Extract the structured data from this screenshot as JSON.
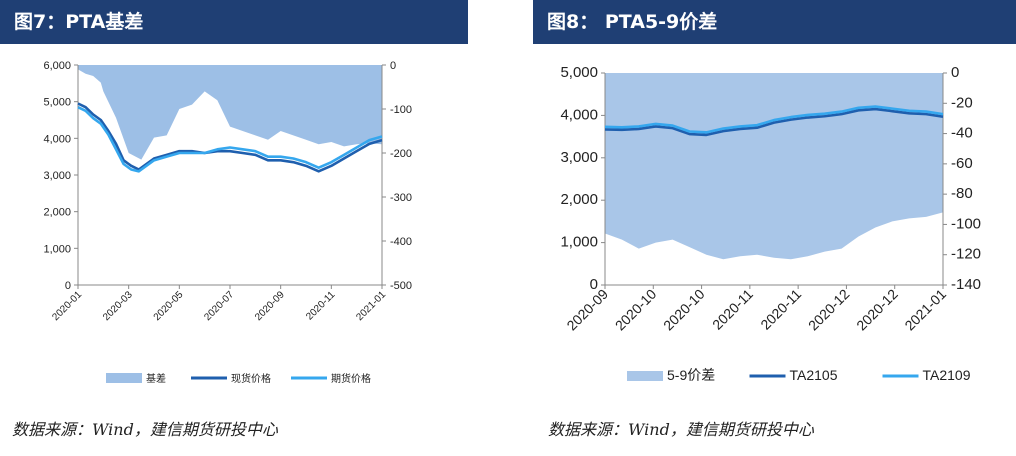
{
  "chart_data": [
    {
      "type": "line",
      "title": "图7：PTA基差",
      "xlabel": "",
      "ylabel": "",
      "x_ticks": [
        "2020-01",
        "2020-03",
        "2020-05",
        "2020-07",
        "2020-09",
        "2020-11",
        "2021-01"
      ],
      "y_left_ticks": [
        "6,000",
        "5,000",
        "4,000",
        "3,000",
        "2,000",
        "1,000",
        "0"
      ],
      "y_right_ticks": [
        "0",
        "-100",
        "-200",
        "-300",
        "-400",
        "-500"
      ],
      "ylim_left": [
        0,
        6000
      ],
      "ylim_right": [
        -500,
        0
      ],
      "legend_position": "bottom",
      "series": [
        {
          "name": "基差",
          "type": "area",
          "axis": "right",
          "color": "#9dbfe6",
          "x": [
            0,
            0.3,
            0.6,
            0.9,
            1.0,
            1.5,
            2.0,
            2.5,
            3.0,
            3.5,
            4.0,
            4.5,
            5.0,
            5.5,
            6.0,
            6.5,
            7.0,
            7.5,
            8.0,
            8.5,
            9.0,
            9.5,
            10.0,
            10.5,
            11.0,
            11.5,
            12.0
          ],
          "values": [
            -10,
            -20,
            -25,
            -40,
            -60,
            -120,
            -200,
            -215,
            -165,
            -160,
            -100,
            -90,
            -60,
            -80,
            -140,
            -150,
            -160,
            -170,
            -150,
            -160,
            -170,
            -180,
            -175,
            -185,
            -180,
            -178,
            -180
          ]
        },
        {
          "name": "现货价格",
          "type": "line",
          "axis": "left",
          "color": "#1f5fae",
          "x": [
            0,
            0.3,
            0.6,
            0.9,
            1.2,
            1.5,
            1.8,
            2.1,
            2.4,
            2.7,
            3.0,
            3.5,
            4.0,
            4.5,
            5.0,
            5.5,
            6.0,
            6.5,
            7.0,
            7.5,
            8.0,
            8.5,
            9.0,
            9.5,
            10.0,
            10.5,
            11.0,
            11.5,
            12.0
          ],
          "values": [
            4950,
            4850,
            4650,
            4500,
            4200,
            3850,
            3400,
            3250,
            3150,
            3300,
            3450,
            3550,
            3650,
            3650,
            3600,
            3650,
            3650,
            3600,
            3550,
            3400,
            3400,
            3350,
            3250,
            3100,
            3250,
            3450,
            3650,
            3850,
            3950
          ]
        },
        {
          "name": "期货价格",
          "type": "line",
          "axis": "left",
          "color": "#35a7ee",
          "x": [
            0,
            0.3,
            0.6,
            0.9,
            1.2,
            1.5,
            1.8,
            2.1,
            2.4,
            2.7,
            3.0,
            3.5,
            4.0,
            4.5,
            5.0,
            5.5,
            6.0,
            6.5,
            7.0,
            7.5,
            8.0,
            8.5,
            9.0,
            9.5,
            10.0,
            10.5,
            11.0,
            11.5,
            12.0
          ],
          "values": [
            4850,
            4750,
            4550,
            4400,
            4100,
            3700,
            3300,
            3150,
            3100,
            3250,
            3400,
            3500,
            3600,
            3600,
            3600,
            3700,
            3750,
            3700,
            3650,
            3500,
            3500,
            3450,
            3350,
            3200,
            3350,
            3550,
            3750,
            3950,
            4050
          ]
        }
      ]
    },
    {
      "type": "line",
      "title": "图8：  PTA5-9价差",
      "xlabel": "",
      "ylabel": "",
      "x_ticks": [
        "2020-09",
        "2020-10",
        "2020-10",
        "2020-11",
        "2020-11",
        "2020-12",
        "2020-12",
        "2021-01"
      ],
      "y_left_ticks": [
        "5,000",
        "4,000",
        "3,000",
        "2,000",
        "1,000",
        "0"
      ],
      "y_right_ticks": [
        "0",
        "-20",
        "-40",
        "-60",
        "-80",
        "-100",
        "-120",
        "-140"
      ],
      "ylim_left": [
        0,
        5000
      ],
      "ylim_right": [
        -140,
        0
      ],
      "legend_position": "bottom",
      "series": [
        {
          "name": "5-9价差",
          "type": "area",
          "axis": "right",
          "color": "#a9c6e8",
          "x": [
            0,
            0.5,
            1.0,
            1.5,
            2.0,
            2.5,
            3.0,
            3.5,
            4.0,
            4.5,
            5.0,
            5.5,
            6.0,
            6.5,
            7.0,
            7.5,
            8.0,
            8.5,
            9.0,
            9.5,
            10.0
          ],
          "values": [
            -106,
            -110,
            -116,
            -112,
            -110,
            -115,
            -120,
            -123,
            -121,
            -120,
            -122,
            -123,
            -121,
            -118,
            -116,
            -108,
            -102,
            -98,
            -96,
            -95,
            -92
          ]
        },
        {
          "name": "TA2105",
          "type": "line",
          "axis": "left",
          "color": "#1f5fae",
          "x": [
            0,
            0.5,
            1.0,
            1.5,
            2.0,
            2.5,
            3.0,
            3.5,
            4.0,
            4.5,
            5.0,
            5.5,
            6.0,
            6.5,
            7.0,
            7.5,
            8.0,
            8.5,
            9.0,
            9.5,
            10.0
          ],
          "values": [
            3670,
            3660,
            3680,
            3740,
            3700,
            3560,
            3540,
            3630,
            3680,
            3710,
            3830,
            3900,
            3950,
            3980,
            4030,
            4120,
            4150,
            4100,
            4050,
            4030,
            3970
          ]
        },
        {
          "name": "TA2109",
          "type": "line",
          "axis": "left",
          "color": "#35a7ee",
          "x": [
            0,
            0.5,
            1.0,
            1.5,
            2.0,
            2.5,
            3.0,
            3.5,
            4.0,
            4.5,
            5.0,
            5.5,
            6.0,
            6.5,
            7.0,
            7.5,
            8.0,
            8.5,
            9.0,
            9.5,
            10.0
          ],
          "values": [
            3730,
            3720,
            3740,
            3800,
            3760,
            3620,
            3600,
            3690,
            3740,
            3770,
            3890,
            3960,
            4010,
            4040,
            4090,
            4180,
            4210,
            4160,
            4110,
            4090,
            4030
          ]
        }
      ]
    }
  ],
  "source_left": "数据来源：Wind，建信期货研投中心",
  "source_right": "数据来源：Wind，建信期货研投中心"
}
